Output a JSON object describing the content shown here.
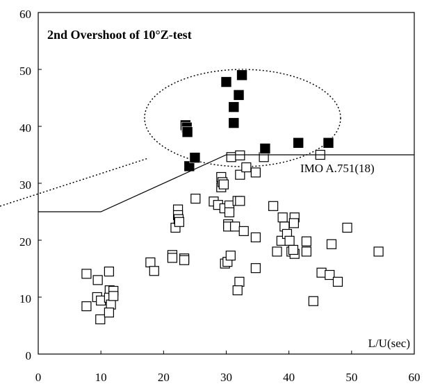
{
  "chart_data": {
    "type": "scatter",
    "title": "2nd Overshoot of 10°Z-test",
    "xlabel": "L/U(sec)",
    "xlim": [
      0,
      60
    ],
    "ylim": [
      0,
      60
    ],
    "xticks": [
      0,
      10,
      20,
      30,
      40,
      50,
      60
    ],
    "yticks": [
      0,
      10,
      20,
      30,
      40,
      50,
      60
    ],
    "series": [
      {
        "marker": "open-square",
        "color": "#000000",
        "x": [
          7.7,
          7.7,
          9.5,
          9.4,
          10.0,
          9.9,
          11.3,
          11.4,
          11.3,
          11.6,
          11.3,
          12.0,
          12.0,
          17.9,
          18.5,
          21.4,
          21.4,
          23.3,
          23.3,
          21.9,
          22.3,
          22.3,
          22.4,
          22.5,
          25.1,
          28.0,
          28.7,
          29.2,
          29.2,
          29.4,
          29.6,
          29.7,
          29.8,
          30.2,
          30.3,
          30.5,
          30.5,
          30.3,
          30.8,
          30.7,
          31.4,
          31.8,
          32.2,
          32.2,
          32.2,
          32.1,
          31.8,
          32.8,
          33.2,
          34.7,
          34.7,
          34.7,
          36.0,
          37.5,
          38.1,
          38.8,
          39.0,
          39.3,
          39.7,
          40.1,
          40.4,
          40.9,
          40.8,
          40.9,
          40.7,
          42.8,
          42.8,
          43.9,
          45.0,
          45.2,
          46.5,
          46.8,
          47.8,
          49.3,
          54.3
        ],
        "values": [
          14.1,
          8.4,
          13.0,
          10.0,
          9.4,
          6.1,
          14.5,
          11.2,
          9.9,
          8.7,
          7.3,
          11.1,
          10.2,
          16.1,
          14.6,
          17.4,
          16.9,
          16.8,
          16.5,
          22.2,
          25.4,
          24.4,
          23.7,
          23.2,
          27.3,
          26.8,
          26.2,
          31.1,
          29.3,
          30.2,
          29.8,
          25.6,
          15.9,
          16.2,
          22.8,
          26.1,
          24.9,
          22.4,
          34.6,
          17.3,
          22.4,
          26.9,
          26.9,
          31.5,
          34.9,
          12.7,
          11.2,
          21.6,
          32.8,
          31.9,
          20.5,
          15.1,
          34.6,
          26.0,
          18.0,
          19.9,
          24.0,
          22.4,
          21.1,
          19.9,
          18.0,
          24.0,
          23.0,
          17.6,
          18.3,
          19.8,
          18.0,
          9.3,
          35.0,
          14.3,
          13.9,
          19.3,
          12.7,
          22.2,
          18.0
        ]
      },
      {
        "marker": "filled-square",
        "color": "#000000",
        "x": [
          23.5,
          23.7,
          23.8,
          24.1,
          25.0,
          30.0,
          32.5,
          32.0,
          31.2,
          31.2,
          36.2,
          41.5,
          46.3
        ],
        "values": [
          40.2,
          39.8,
          39.0,
          33.0,
          34.5,
          47.8,
          49.0,
          45.5,
          43.4,
          40.6,
          36.1,
          37.1,
          37.1
        ]
      },
      {
        "name": "IMO A.751(18)",
        "marker": "line",
        "color": "#000000",
        "x": [
          0,
          10,
          30,
          60
        ],
        "values": [
          25,
          25,
          35,
          35
        ]
      }
    ]
  }
}
